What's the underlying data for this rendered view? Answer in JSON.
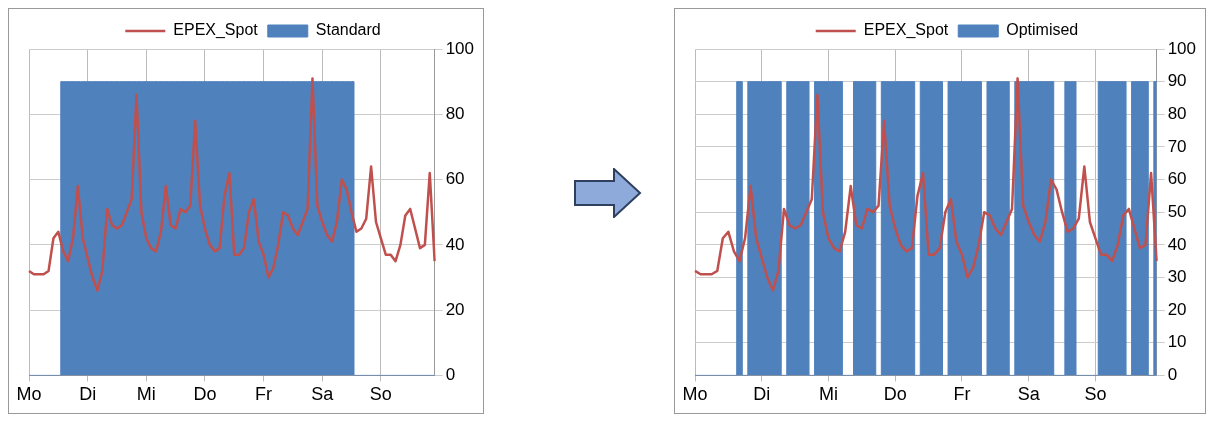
{
  "chart_data": [
    {
      "type": "line",
      "categories": [
        "Mo",
        null,
        null,
        null,
        null,
        null,
        null,
        null,
        null,
        null,
        null,
        null,
        "Di",
        null,
        null,
        null,
        null,
        null,
        null,
        null,
        null,
        null,
        null,
        null,
        "Mi",
        null,
        null,
        null,
        null,
        null,
        null,
        null,
        null,
        null,
        null,
        null,
        "Do",
        null,
        null,
        null,
        null,
        null,
        null,
        null,
        null,
        null,
        null,
        null,
        "Fr",
        null,
        null,
        null,
        null,
        null,
        null,
        null,
        null,
        null,
        null,
        null,
        "Sa",
        null,
        null,
        null,
        null,
        null,
        null,
        null,
        null,
        null,
        null,
        null,
        "So",
        null,
        null,
        null,
        null,
        null,
        null,
        null,
        null,
        null,
        null,
        null
      ],
      "ylim": [
        0,
        100
      ],
      "yticks": [
        0,
        20,
        40,
        60,
        80,
        100
      ],
      "grid": true,
      "legend": "top",
      "marker": "none",
      "series": [
        {
          "name": "Standard",
          "type": "area",
          "color": "#4f81bd",
          "values": [
            0,
            0,
            0,
            0,
            0,
            0,
            0,
            90,
            90,
            90,
            90,
            90,
            90,
            90,
            90,
            90,
            90,
            90,
            90,
            90,
            90,
            90,
            90,
            90,
            90,
            90,
            90,
            90,
            90,
            90,
            90,
            90,
            90,
            90,
            90,
            90,
            90,
            90,
            90,
            90,
            90,
            90,
            90,
            90,
            90,
            90,
            90,
            90,
            90,
            90,
            90,
            90,
            90,
            90,
            90,
            90,
            90,
            90,
            90,
            90,
            90,
            90,
            90,
            90,
            90,
            90,
            90,
            0,
            0,
            0,
            0,
            0,
            0,
            0,
            0,
            0,
            0,
            0,
            0,
            0,
            0,
            0,
            0,
            0
          ]
        },
        {
          "name": "EPEX_Spot",
          "color": "#c0504d",
          "values": [
            32,
            31,
            31,
            31,
            32,
            42,
            44,
            38,
            35,
            42,
            58,
            42,
            36,
            30,
            26,
            32,
            51,
            46,
            45,
            46,
            50,
            54,
            86,
            50,
            42,
            39,
            38,
            44,
            58,
            46,
            45,
            51,
            50,
            52,
            78,
            52,
            45,
            40,
            38,
            39,
            55,
            62,
            37,
            37,
            39,
            50,
            54,
            41,
            37,
            30,
            33,
            40,
            50,
            49,
            45,
            43,
            47,
            51,
            91,
            52,
            47,
            43,
            41,
            47,
            60,
            57,
            50,
            44,
            45,
            48,
            64,
            47,
            42,
            37,
            37,
            35,
            40,
            49,
            51,
            45,
            39,
            40,
            62,
            35
          ]
        }
      ]
    },
    {
      "type": "line",
      "categories": [
        "Mo",
        null,
        null,
        null,
        null,
        null,
        null,
        null,
        null,
        null,
        null,
        null,
        "Di",
        null,
        null,
        null,
        null,
        null,
        null,
        null,
        null,
        null,
        null,
        null,
        "Mi",
        null,
        null,
        null,
        null,
        null,
        null,
        null,
        null,
        null,
        null,
        null,
        "Do",
        null,
        null,
        null,
        null,
        null,
        null,
        null,
        null,
        null,
        null,
        null,
        "Fr",
        null,
        null,
        null,
        null,
        null,
        null,
        null,
        null,
        null,
        null,
        null,
        "Sa",
        null,
        null,
        null,
        null,
        null,
        null,
        null,
        null,
        null,
        null,
        null,
        "So",
        null,
        null,
        null,
        null,
        null,
        null,
        null,
        null,
        null,
        null,
        null
      ],
      "ylim": [
        0,
        100
      ],
      "yticks": [
        0,
        10,
        20,
        30,
        40,
        50,
        60,
        70,
        80,
        90,
        100
      ],
      "grid": true,
      "legend": "top",
      "marker": "none",
      "series": [
        {
          "name": "Optimised",
          "type": "area",
          "color": "#4f81bd",
          "values": [
            0,
            0,
            0,
            0,
            0,
            0,
            0,
            0,
            90,
            0,
            90,
            90,
            90,
            90,
            90,
            90,
            0,
            90,
            90,
            90,
            90,
            0,
            90,
            90,
            90,
            90,
            90,
            0,
            0,
            90,
            90,
            90,
            90,
            0,
            90,
            90,
            90,
            90,
            90,
            90,
            0,
            90,
            90,
            90,
            90,
            0,
            90,
            90,
            90,
            90,
            90,
            90,
            0,
            90,
            90,
            90,
            90,
            0,
            90,
            90,
            90,
            90,
            90,
            90,
            90,
            0,
            0,
            90,
            90,
            0,
            0,
            0,
            0,
            90,
            90,
            90,
            90,
            90,
            0,
            90,
            90,
            90,
            0,
            90
          ]
        },
        {
          "name": "EPEX_Spot",
          "color": "#c0504d",
          "values": [
            32,
            31,
            31,
            31,
            32,
            42,
            44,
            38,
            35,
            42,
            58,
            42,
            36,
            30,
            26,
            32,
            51,
            46,
            45,
            46,
            50,
            54,
            86,
            50,
            42,
            39,
            38,
            44,
            58,
            46,
            45,
            51,
            50,
            52,
            78,
            52,
            45,
            40,
            38,
            39,
            55,
            62,
            37,
            37,
            39,
            50,
            54,
            41,
            37,
            30,
            33,
            40,
            50,
            49,
            45,
            43,
            47,
            51,
            91,
            52,
            47,
            43,
            41,
            47,
            60,
            57,
            50,
            44,
            45,
            48,
            64,
            47,
            42,
            37,
            37,
            35,
            40,
            49,
            51,
            45,
            39,
            40,
            62,
            35
          ]
        }
      ]
    }
  ]
}
